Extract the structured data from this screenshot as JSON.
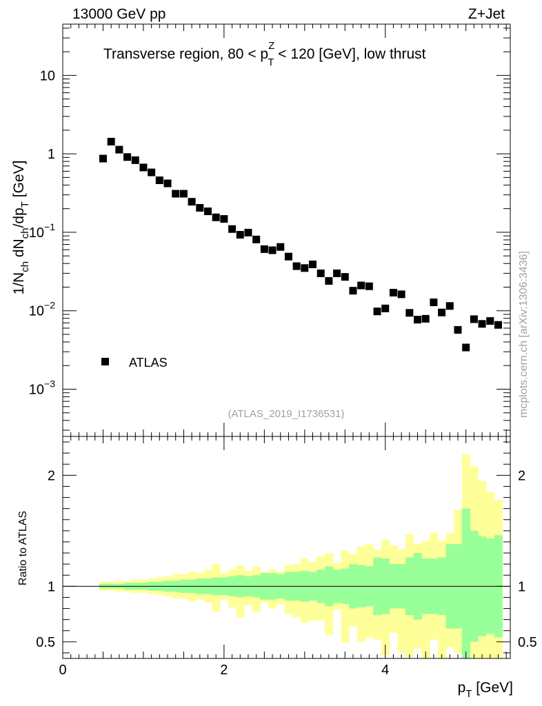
{
  "header": {
    "energy_label": "13000 GeV pp",
    "process_label": "Z+Jet"
  },
  "watermark": "mcplots.cern.ch [arXiv:1306:3436]",
  "analysis_id": "(ATLAS_2019_I1736531)",
  "chart_data": [
    {
      "type": "scatter",
      "title_parts": {
        "prefix": "Transverse region, 80 < p",
        "sup": "Z",
        "sub": "T",
        "suffix": " < 120 [GeV], low thrust"
      },
      "ylabel_parts": [
        "1/N",
        "ch",
        " dN",
        "ch",
        "/dp",
        "T",
        " [GeV]"
      ],
      "xlim": [
        0,
        5.55
      ],
      "ylim_log": [
        0.00025,
        45
      ],
      "yticks": [
        {
          "value": 0.001,
          "base": "10",
          "exp": "−3"
        },
        {
          "value": 0.01,
          "base": "10",
          "exp": "−2"
        },
        {
          "value": 0.1,
          "base": "10",
          "exp": "−1"
        },
        {
          "value": 1,
          "label": "1"
        },
        {
          "value": 10,
          "label": "10"
        }
      ],
      "legend": {
        "label": "ATLAS",
        "position": "bottom-left"
      },
      "series": [
        {
          "name": "ATLAS",
          "marker": "square",
          "color": "#000000",
          "x": [
            0.5,
            0.6,
            0.7,
            0.8,
            0.9,
            1.0,
            1.1,
            1.2,
            1.3,
            1.4,
            1.5,
            1.6,
            1.7,
            1.8,
            1.9,
            2.0,
            2.1,
            2.2,
            2.3,
            2.4,
            2.5,
            2.6,
            2.7,
            2.8,
            2.9,
            3.0,
            3.1,
            3.2,
            3.3,
            3.4,
            3.5,
            3.6,
            3.7,
            3.8,
            3.9,
            4.0,
            4.1,
            4.2,
            4.3,
            4.4,
            4.5,
            4.6,
            4.7,
            4.8,
            4.9,
            5.0,
            5.1,
            5.2,
            5.3,
            5.4
          ],
          "y": [
            0.87,
            1.43,
            1.13,
            0.91,
            0.83,
            0.67,
            0.58,
            0.46,
            0.42,
            0.31,
            0.31,
            0.245,
            0.205,
            0.185,
            0.155,
            0.148,
            0.11,
            0.093,
            0.099,
            0.081,
            0.061,
            0.059,
            0.065,
            0.049,
            0.037,
            0.035,
            0.039,
            0.03,
            0.024,
            0.03,
            0.027,
            0.018,
            0.021,
            0.0205,
            0.0098,
            0.0107,
            0.017,
            0.0162,
            0.0094,
            0.0077,
            0.0079,
            0.0128,
            0.0095,
            0.0115,
            0.0057,
            0.0034,
            0.0078,
            0.0068,
            0.0074,
            0.0066
          ]
        }
      ]
    },
    {
      "type": "area",
      "ylabel": "Ratio to ATLAS",
      "xlabel_parts": [
        "p",
        "T",
        " [GeV]"
      ],
      "xlim": [
        0,
        5.55
      ],
      "ylim": [
        0.35,
        2.35
      ],
      "xticks": [
        {
          "value": 0,
          "label": "0"
        },
        {
          "value": 2,
          "label": "2"
        },
        {
          "value": 4,
          "label": "4"
        }
      ],
      "yticks": [
        {
          "value": 0.5,
          "label": "0.5"
        },
        {
          "value": 1,
          "label": "1"
        },
        {
          "value": 2,
          "label": "2"
        }
      ],
      "reference_line": 1,
      "bins_low": [
        0.45,
        0.55,
        0.65,
        0.75,
        0.85,
        0.95,
        1.05,
        1.15,
        1.25,
        1.35,
        1.45,
        1.55,
        1.65,
        1.75,
        1.85,
        1.95,
        2.05,
        2.15,
        2.25,
        2.35,
        2.45,
        2.55,
        2.65,
        2.75,
        2.85,
        2.95,
        3.05,
        3.15,
        3.25,
        3.35,
        3.45,
        3.55,
        3.65,
        3.75,
        3.85,
        3.95,
        4.05,
        4.15,
        4.25,
        4.35,
        4.45,
        4.55,
        4.65,
        4.75,
        4.85,
        4.95,
        5.05,
        5.15,
        5.25,
        5.35
      ],
      "bins_high": [
        0.55,
        0.65,
        0.75,
        0.85,
        0.95,
        1.05,
        1.15,
        1.25,
        1.35,
        1.45,
        1.55,
        1.65,
        1.75,
        1.85,
        1.95,
        2.05,
        2.15,
        2.25,
        2.35,
        2.45,
        2.55,
        2.65,
        2.75,
        2.85,
        2.95,
        3.05,
        3.15,
        3.25,
        3.35,
        3.45,
        3.55,
        3.65,
        3.75,
        3.85,
        3.95,
        4.05,
        4.15,
        4.25,
        4.35,
        4.45,
        4.55,
        4.65,
        4.75,
        4.85,
        4.95,
        5.05,
        5.15,
        5.25,
        5.35,
        5.45
      ],
      "bands": [
        {
          "name": "total uncertainty",
          "color": "#ffff99",
          "up": [
            1.04,
            1.04,
            1.05,
            1.05,
            1.06,
            1.06,
            1.07,
            1.08,
            1.09,
            1.11,
            1.11,
            1.13,
            1.12,
            1.15,
            1.2,
            1.12,
            1.15,
            1.19,
            1.14,
            1.18,
            1.13,
            1.15,
            1.13,
            1.19,
            1.2,
            1.25,
            1.22,
            1.27,
            1.3,
            1.21,
            1.32,
            1.29,
            1.36,
            1.38,
            1.33,
            1.42,
            1.37,
            1.33,
            1.47,
            1.38,
            1.41,
            1.48,
            1.41,
            1.48,
            1.69,
            2.19,
            2.08,
            1.95,
            1.85,
            1.78
          ],
          "down": [
            0.96,
            0.96,
            0.95,
            0.95,
            0.94,
            0.94,
            0.93,
            0.92,
            0.91,
            0.89,
            0.89,
            0.86,
            0.88,
            0.85,
            0.77,
            0.88,
            0.81,
            0.72,
            0.83,
            0.77,
            0.85,
            0.8,
            0.84,
            0.75,
            0.72,
            0.67,
            0.69,
            0.69,
            0.56,
            0.79,
            0.49,
            0.64,
            0.5,
            0.54,
            0.52,
            0.38,
            0.58,
            0.4,
            0.36,
            0.44,
            0.35,
            0.52,
            0.35,
            0.45,
            0.4,
            0.35,
            0.35,
            0.35,
            0.35,
            0.35
          ]
        },
        {
          "name": "statistical uncertainty",
          "color": "#99ff99",
          "up": [
            1.02,
            1.02,
            1.02,
            1.03,
            1.03,
            1.03,
            1.04,
            1.04,
            1.05,
            1.05,
            1.06,
            1.06,
            1.07,
            1.07,
            1.08,
            1.08,
            1.09,
            1.1,
            1.09,
            1.1,
            1.12,
            1.12,
            1.11,
            1.13,
            1.13,
            1.14,
            1.13,
            1.15,
            1.18,
            1.15,
            1.16,
            1.2,
            1.19,
            1.18,
            1.26,
            1.25,
            1.2,
            1.2,
            1.26,
            1.3,
            1.25,
            1.25,
            1.26,
            1.38,
            1.38,
            1.7,
            1.5,
            1.45,
            1.43,
            1.46
          ],
          "down": [
            0.98,
            0.98,
            0.98,
            0.97,
            0.97,
            0.97,
            0.96,
            0.96,
            0.95,
            0.95,
            0.94,
            0.94,
            0.93,
            0.93,
            0.92,
            0.92,
            0.91,
            0.9,
            0.91,
            0.9,
            0.88,
            0.88,
            0.89,
            0.87,
            0.87,
            0.86,
            0.87,
            0.85,
            0.82,
            0.85,
            0.84,
            0.8,
            0.81,
            0.82,
            0.74,
            0.75,
            0.8,
            0.8,
            0.74,
            0.7,
            0.75,
            0.75,
            0.74,
            0.62,
            0.62,
            0.35,
            0.5,
            0.55,
            0.57,
            0.54
          ]
        }
      ]
    }
  ]
}
